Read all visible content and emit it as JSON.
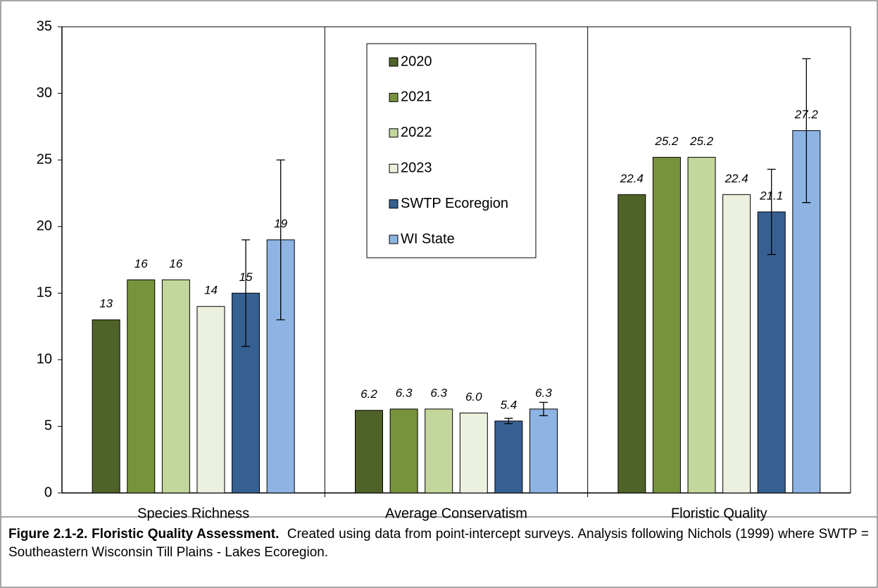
{
  "chart_data": {
    "type": "bar",
    "categories": [
      "Species Richness",
      "Average Conservatism",
      "Floristic Quality"
    ],
    "series": [
      {
        "name": "2020",
        "color": "#4f6228",
        "values": [
          13,
          6.2,
          22.4
        ]
      },
      {
        "name": "2021",
        "color": "#77933c",
        "values": [
          16,
          6.3,
          25.2
        ]
      },
      {
        "name": "2022",
        "color": "#c3d69b",
        "values": [
          16,
          6.3,
          25.2
        ]
      },
      {
        "name": "2023",
        "color": "#ebf1de",
        "values": [
          14,
          6.0,
          22.4
        ],
        "value_labels": [
          "14",
          "6.0",
          "22.4"
        ]
      },
      {
        "name": "SWTP Ecoregion",
        "color": "#376092",
        "values": [
          15,
          5.4,
          21.1
        ],
        "errors": [
          4,
          0.2,
          3.2
        ]
      },
      {
        "name": "WI State",
        "color": "#8eb4e3",
        "values": [
          19,
          6.3,
          27.2
        ],
        "errors": [
          6,
          0.5,
          5.4
        ]
      }
    ],
    "ylim": [
      0,
      35
    ],
    "yticks": [
      0,
      5,
      10,
      15,
      20,
      25,
      30,
      35
    ],
    "caption": {
      "label": "Figure 2.1-2.  Floristic Quality Assessment.",
      "text": "Created using data from point-intercept surveys. Analysis following Nichols (1999) where SWTP = Southeastern Wisconsin Till Plains - Lakes Ecoregion."
    }
  }
}
